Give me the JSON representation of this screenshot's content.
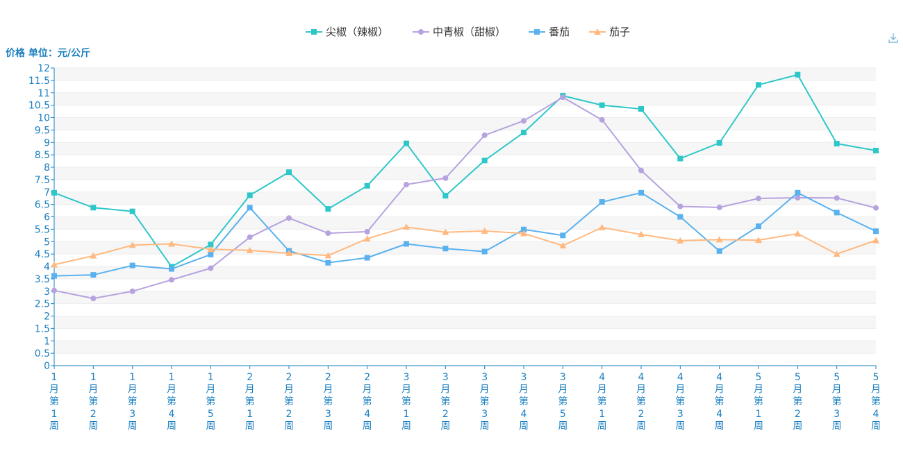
{
  "chart_data": {
    "type": "line",
    "ylabel": "价格 单位：元/公斤",
    "ylim": [
      0,
      12
    ],
    "y_ticks": [
      "0",
      "0.5",
      "1",
      "1.5",
      "2",
      "2.5",
      "3",
      "3.5",
      "4",
      "4.5",
      "5",
      "5.5",
      "6",
      "6.5",
      "7",
      "7.5",
      "8",
      "8.5",
      "9",
      "9.5",
      "10",
      "10.5",
      "11",
      "11.5",
      "12"
    ],
    "categories": [
      "1月第1周",
      "1月第2周",
      "1月第3周",
      "1月第4周",
      "1月第5周",
      "2月第1周",
      "2月第2周",
      "2月第3周",
      "2月第4周",
      "3月第1周",
      "3月第2周",
      "3月第3周",
      "3月第4周",
      "3月第5周",
      "4月第1周",
      "4月第2周",
      "4月第3周",
      "4月第4周",
      "5月第1周",
      "5月第2周",
      "5月第3周",
      "5月第4周"
    ],
    "grid": true,
    "legend_position": "top-center",
    "series": [
      {
        "name": "尖椒（辣椒）",
        "color": "#2ec7c9",
        "marker": "square",
        "values": [
          6.97,
          6.37,
          6.22,
          3.99,
          4.88,
          6.87,
          7.8,
          6.32,
          7.25,
          8.96,
          6.85,
          8.27,
          9.4,
          10.88,
          10.5,
          10.35,
          8.35,
          8.98,
          11.32,
          11.73,
          8.95,
          8.67
        ]
      },
      {
        "name": "中青椒（甜椒）",
        "color": "#b6a2de",
        "marker": "circle",
        "values": [
          3.03,
          2.71,
          3.0,
          3.46,
          3.93,
          5.18,
          5.95,
          5.34,
          5.4,
          7.3,
          7.56,
          9.29,
          9.87,
          10.82,
          9.91,
          7.87,
          6.42,
          6.38,
          6.74,
          6.77,
          6.76,
          6.36
        ]
      },
      {
        "name": "番茄",
        "color": "#5ab1ef",
        "marker": "square",
        "values": [
          3.62,
          3.66,
          4.04,
          3.9,
          4.48,
          6.37,
          4.63,
          4.15,
          4.35,
          4.91,
          4.72,
          4.6,
          5.49,
          5.25,
          6.6,
          6.97,
          6.0,
          4.62,
          5.62,
          6.97,
          6.17,
          5.42
        ]
      },
      {
        "name": "茄子",
        "color": "#ffb980",
        "marker": "triangle",
        "values": [
          4.07,
          4.43,
          4.86,
          4.91,
          4.69,
          4.65,
          4.53,
          4.44,
          5.12,
          5.59,
          5.38,
          5.43,
          5.33,
          4.84,
          5.57,
          5.29,
          5.04,
          5.08,
          5.06,
          5.32,
          4.5,
          5.05
        ]
      }
    ]
  },
  "toolbar": {
    "download_icon": "download-icon"
  }
}
